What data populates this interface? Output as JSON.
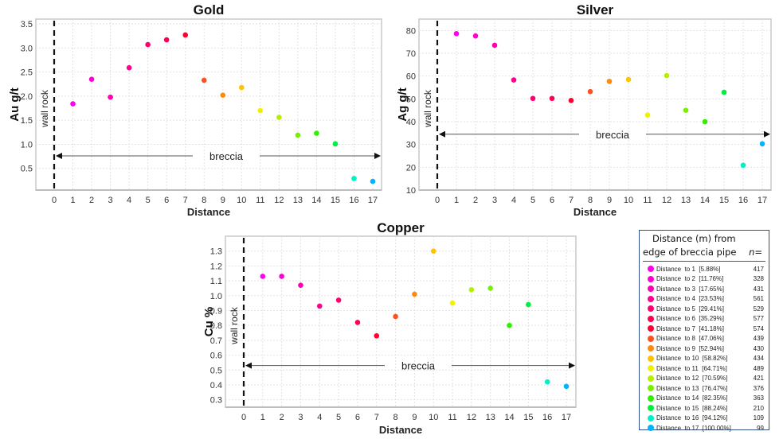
{
  "chart_data": [
    {
      "id": "gold",
      "type": "scatter",
      "title": "Gold",
      "xlabel": "Distance",
      "ylabel": "Au g/t",
      "x": [
        1,
        2,
        3,
        4,
        5,
        6,
        7,
        8,
        9,
        10,
        11,
        12,
        13,
        14,
        15,
        16,
        17
      ],
      "values": [
        1.84,
        2.35,
        1.98,
        2.59,
        3.07,
        3.17,
        3.27,
        2.33,
        2.02,
        2.18,
        1.7,
        1.56,
        1.19,
        1.23,
        1.01,
        0.29,
        0.23
      ],
      "xlim": [
        -1,
        17.3
      ],
      "ylim": [
        0.05,
        3.6
      ],
      "xticks": [
        0,
        1,
        2,
        3,
        4,
        5,
        6,
        7,
        8,
        9,
        10,
        11,
        12,
        13,
        14,
        15,
        16,
        17
      ],
      "yticks": [
        0.5,
        1.0,
        1.5,
        2.0,
        2.5,
        3.0,
        3.5
      ],
      "ytick_labels": [
        "0.5",
        "1.0",
        "1.5",
        "2.0",
        "2.5",
        "3.0",
        "3.5"
      ],
      "grid": true,
      "boundary_x": 0,
      "boundary_label": "wall rock",
      "arrow_label": "breccia",
      "arrow_y": 0.76
    },
    {
      "id": "silver",
      "type": "scatter",
      "title": "Silver",
      "xlabel": "Distance",
      "ylabel": "Ag g/t",
      "x": [
        1,
        2,
        3,
        4,
        5,
        6,
        7,
        8,
        9,
        10,
        11,
        12,
        13,
        14,
        15,
        16,
        17
      ],
      "values": [
        78.6,
        77.6,
        73.5,
        58.3,
        50.2,
        50.2,
        49.3,
        53.2,
        57.7,
        58.5,
        42.9,
        60.2,
        45.0,
        40.0,
        52.9,
        20.9,
        30.3
      ],
      "xlim": [
        -1,
        17.3
      ],
      "ylim": [
        10,
        85
      ],
      "xticks": [
        0,
        1,
        2,
        3,
        4,
        5,
        6,
        7,
        8,
        9,
        10,
        11,
        12,
        13,
        14,
        15,
        16,
        17
      ],
      "yticks": [
        10,
        20,
        30,
        40,
        50,
        60,
        70,
        80
      ],
      "ytick_labels": [
        "10",
        "20",
        "30",
        "40",
        "50",
        "60",
        "70",
        "80"
      ],
      "grid": true,
      "boundary_x": 0,
      "boundary_label": "wall rock",
      "arrow_label": "breccia",
      "arrow_y": 34.5
    },
    {
      "id": "copper",
      "type": "scatter",
      "title": "Copper",
      "xlabel": "Distance",
      "ylabel": "Cu %",
      "x": [
        1,
        2,
        3,
        4,
        5,
        6,
        7,
        8,
        9,
        10,
        11,
        12,
        13,
        14,
        15,
        16,
        17
      ],
      "values": [
        1.13,
        1.13,
        1.07,
        0.93,
        0.97,
        0.82,
        0.73,
        0.86,
        1.01,
        1.3,
        0.95,
        1.04,
        1.05,
        0.8,
        0.94,
        0.42,
        0.39
      ],
      "xlim": [
        -1,
        17.3
      ],
      "ylim": [
        0.25,
        1.4
      ],
      "xticks": [
        0,
        1,
        2,
        3,
        4,
        5,
        6,
        7,
        8,
        9,
        10,
        11,
        12,
        13,
        14,
        15,
        16,
        17
      ],
      "yticks": [
        0.3,
        0.4,
        0.5,
        0.6,
        0.7,
        0.8,
        0.9,
        1.0,
        1.1,
        1.2,
        1.3
      ],
      "ytick_labels": [
        "0.3",
        "0.4",
        "0.5",
        "0.6",
        "0.7",
        "0.8",
        "0.9",
        "1.0",
        "1.1",
        "1.2",
        "1.3"
      ],
      "grid": true,
      "boundary_x": 0,
      "boundary_label": "wall rock",
      "arrow_label": "breccia",
      "arrow_y": 0.53
    }
  ],
  "point_colors": [
    "#ff00ee",
    "#ff00d0",
    "#ff00b4",
    "#ff0090",
    "#ff0070",
    "#ff0050",
    "#ff0030",
    "#ff5020",
    "#ff8a10",
    "#ffc400",
    "#f0f000",
    "#b4f000",
    "#78f000",
    "#30f000",
    "#00f040",
    "#00f0c8",
    "#00b4ff"
  ],
  "legend": {
    "header_line1": "Distance (m) from",
    "header_line2": "edge of breccia pipe",
    "n_header": "n=",
    "items": [
      {
        "label": "Distance  to 1  [5.88%]",
        "n": "417"
      },
      {
        "label": "Distance  to 2  [11.76%]",
        "n": "328"
      },
      {
        "label": "Distance  to 3  [17.65%]",
        "n": "431"
      },
      {
        "label": "Distance  to 4  [23.53%]",
        "n": "561"
      },
      {
        "label": "Distance  to 5  [29.41%]",
        "n": "529"
      },
      {
        "label": "Distance  to 6  [35.29%]",
        "n": "577"
      },
      {
        "label": "Distance  to 7  [41.18%]",
        "n": "574"
      },
      {
        "label": "Distance  to 8  [47.06%]",
        "n": "439"
      },
      {
        "label": "Distance  to 9  [52.94%]",
        "n": "430"
      },
      {
        "label": "Distance  to 10  [58.82%]",
        "n": "434"
      },
      {
        "label": "Distance  to 11  [64.71%]",
        "n": "489"
      },
      {
        "label": "Distance  to 12  [70.59%]",
        "n": "421"
      },
      {
        "label": "Distance  to 13  [76.47%]",
        "n": "376"
      },
      {
        "label": "Distance  to 14  [82.35%]",
        "n": "363"
      },
      {
        "label": "Distance  to 15  [88.24%]",
        "n": "210"
      },
      {
        "label": "Distance  to 16  [94.12%]",
        "n": "109"
      },
      {
        "label": "Distance  to 17  [100.00%]",
        "n": "99"
      }
    ]
  }
}
